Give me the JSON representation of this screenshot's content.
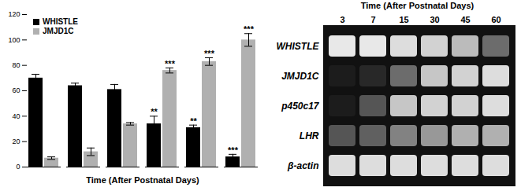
{
  "chart_data": [
    {
      "type": "bar",
      "categories": [
        null,
        null,
        null,
        null,
        null,
        null
      ],
      "x_label": "Time (After Postnatal Days)",
      "series": [
        {
          "name": "WHISTLE",
          "color": "#000000",
          "values": [
            70,
            64,
            61,
            34,
            31,
            8
          ],
          "errors": [
            3,
            2,
            4,
            6,
            2,
            2
          ],
          "annotations": [
            null,
            null,
            null,
            "**",
            "**",
            "***"
          ]
        },
        {
          "name": "JMJD1C",
          "color": "#b0b0b0",
          "values": [
            7,
            12,
            34,
            76,
            83,
            100
          ],
          "errors": [
            1,
            3,
            1,
            2,
            3,
            5
          ],
          "annotations": [
            null,
            null,
            null,
            "***",
            "***",
            "***"
          ]
        }
      ],
      "ylim": [
        0,
        120
      ],
      "yticks": [
        0,
        20,
        40,
        60,
        80,
        100,
        120
      ],
      "legend": "top-left",
      "tick_labels": "y",
      "grid": false
    },
    {
      "type": "heatmap",
      "title": "Time (After Postnatal Days)",
      "x": [
        3,
        7,
        15,
        30,
        45,
        60
      ],
      "y": [
        "WHISTLE",
        "JMJD1C",
        "p450c17",
        "LHR",
        "β-actin"
      ],
      "values": [
        [
          0.95,
          0.95,
          0.9,
          0.85,
          0.75,
          0.4
        ],
        [
          0.05,
          0.1,
          0.4,
          0.8,
          0.85,
          0.9
        ],
        [
          0.05,
          0.3,
          0.8,
          0.85,
          0.85,
          0.9
        ],
        [
          0.3,
          0.35,
          0.5,
          0.6,
          0.7,
          0.7
        ],
        [
          0.9,
          0.9,
          0.9,
          0.9,
          0.9,
          0.9
        ]
      ],
      "color_range": [
        0,
        1
      ],
      "grid": false
    }
  ]
}
